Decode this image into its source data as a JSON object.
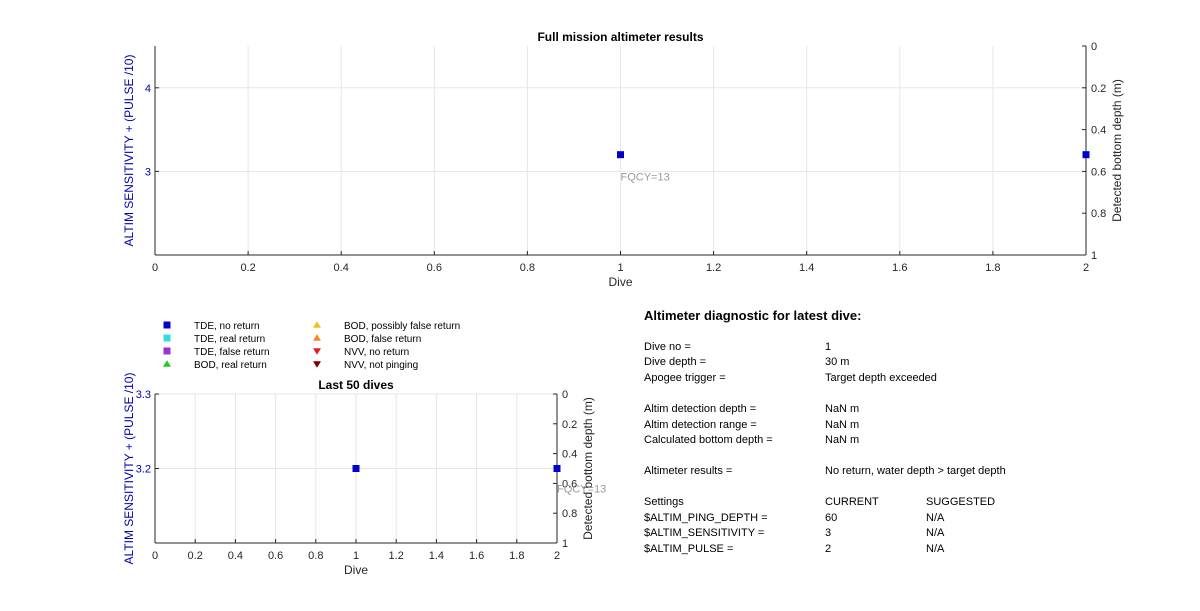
{
  "chart_data": [
    {
      "type": "scatter",
      "title": "Full mission altimeter results",
      "xlabel": "Dive",
      "ylabel_left": "ALTIM SENSITIVITY + (PULSE /10)",
      "ylabel_right": "Detected bottom depth (m)",
      "xlim": [
        0,
        2
      ],
      "ylim_left": [
        2.0,
        4.5
      ],
      "ylim_right": [
        0,
        1
      ],
      "right_axis_reversed": true,
      "xticks": [
        "0",
        "0.2",
        "0.4",
        "0.6",
        "0.8",
        "1",
        "1.2",
        "1.4",
        "1.6",
        "1.8",
        "2"
      ],
      "yticks_left": [
        "3",
        "4"
      ],
      "yticks_right": [
        "0",
        "0.2",
        "0.4",
        "0.6",
        "0.8",
        "1"
      ],
      "grid": true,
      "series": [
        {
          "name": "TDE, no return",
          "color": "#0000cc",
          "marker": "square",
          "x": [
            1,
            2
          ],
          "y": [
            3.2,
            3.2
          ]
        }
      ],
      "annotations": [
        {
          "text": "FQCY=13",
          "x": 1,
          "y": 2.9
        }
      ]
    },
    {
      "type": "scatter",
      "title": "Last 50 dives",
      "xlabel": "Dive",
      "ylabel_left": "ALTIM SENSITIVITY + (PULSE /10)",
      "ylabel_right": "Detected bottom depth (m)",
      "xlim": [
        0,
        2
      ],
      "ylim_left": [
        3.1,
        3.3
      ],
      "ylim_right": [
        0,
        1
      ],
      "right_axis_reversed": true,
      "xticks": [
        "0",
        "0.2",
        "0.4",
        "0.6",
        "0.8",
        "1",
        "1.2",
        "1.4",
        "1.6",
        "1.8",
        "2"
      ],
      "yticks_left": [
        "3.2",
        "3.3"
      ],
      "yticks_right": [
        "0",
        "0.2",
        "0.4",
        "0.6",
        "0.8",
        "1"
      ],
      "grid": true,
      "series": [
        {
          "name": "TDE, no return",
          "color": "#0000cc",
          "marker": "square",
          "x": [
            1,
            2
          ],
          "y": [
            3.2,
            3.2
          ]
        }
      ],
      "annotations": [
        {
          "text": "FQCY=13",
          "x": 2,
          "y": 3.07
        }
      ]
    }
  ],
  "legend": [
    {
      "label": "TDE, no return",
      "color": "#0000cc",
      "marker": "square"
    },
    {
      "label": "TDE, real return",
      "color": "#33dddd",
      "marker": "square"
    },
    {
      "label": "TDE, false return",
      "color": "#9933cc",
      "marker": "square"
    },
    {
      "label": "BOD, real return",
      "color": "#22cc22",
      "marker": "triangle-up"
    },
    {
      "label": "BOD, possibly false return",
      "color": "#f0c020",
      "marker": "triangle-up"
    },
    {
      "label": "BOD, false return",
      "color": "#f08a20",
      "marker": "triangle-up"
    },
    {
      "label": "NVV, no return",
      "color": "#e02020",
      "marker": "triangle-down"
    },
    {
      "label": "NVV, not pinging",
      "color": "#7a0000",
      "marker": "triangle-down"
    }
  ],
  "diagnostic": {
    "title": "Altimeter diagnostic for latest dive:",
    "dive_no_label": "Dive no =",
    "dive_no_value": "1",
    "dive_depth_label": "Dive depth =",
    "dive_depth_value": "30 m",
    "apogee_label": "Apogee trigger =",
    "apogee_value": "Target depth exceeded",
    "altim_det_depth_label": "Altim detection depth =",
    "altim_det_depth_value": "NaN m",
    "altim_det_range_label": "Altim detection range =",
    "altim_det_range_value": "NaN m",
    "calc_bottom_label": "Calculated bottom depth =",
    "calc_bottom_value": "NaN m",
    "results_label": "Altimeter results =",
    "results_value": "No return, water depth > target depth",
    "settings_label": "Settings",
    "current_label": "CURRENT",
    "suggested_label": "SUGGESTED",
    "settings": [
      {
        "name": "$ALTIM_PING_DEPTH =",
        "current": "60",
        "suggested": "N/A"
      },
      {
        "name": "$ALTIM_SENSITIVITY =",
        "current": "3",
        "suggested": "N/A"
      },
      {
        "name": "$ALTIM_PULSE =",
        "current": "2",
        "suggested": "N/A"
      }
    ]
  }
}
